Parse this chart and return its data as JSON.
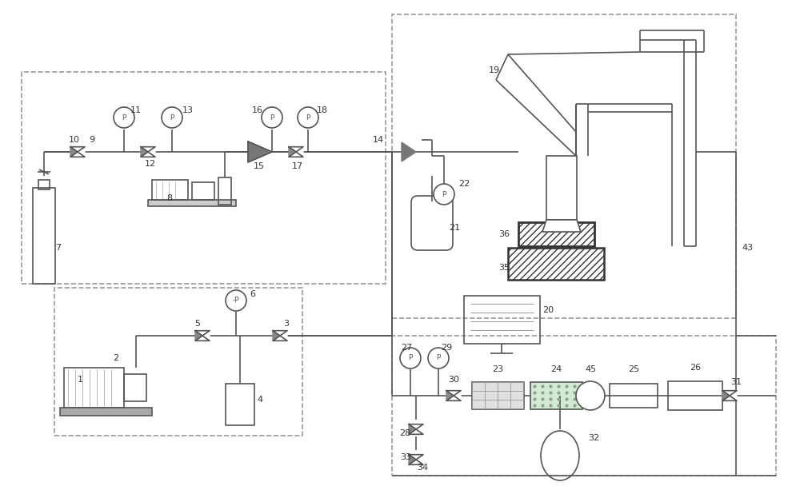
{
  "bg_color": "#ffffff",
  "lc": "#555555",
  "dc": "#999999",
  "lw": 1.2,
  "figsize": [
    10.0,
    6.13
  ],
  "dpi": 100,
  "xlim": [
    0,
    1000
  ],
  "ylim": [
    0,
    613
  ]
}
